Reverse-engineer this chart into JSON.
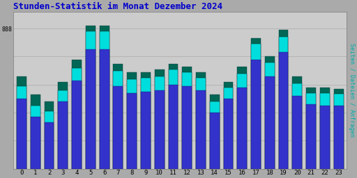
{
  "title": "Stunden-Statistik im Monat Dezember 2024",
  "title_color": "#0000CC",
  "ylabel_right": "Seiten / Dateien / Anfragen",
  "hours": [
    0,
    1,
    2,
    3,
    4,
    5,
    6,
    7,
    8,
    9,
    10,
    11,
    12,
    13,
    14,
    15,
    16,
    17,
    18,
    19,
    20,
    21,
    22,
    23
  ],
  "seiten": [
    330,
    265,
    240,
    310,
    390,
    510,
    510,
    375,
    345,
    345,
    355,
    375,
    365,
    345,
    265,
    310,
    365,
    465,
    400,
    495,
    330,
    290,
    290,
    285
  ],
  "dateien": [
    295,
    225,
    205,
    280,
    360,
    490,
    490,
    350,
    320,
    325,
    330,
    355,
    345,
    325,
    240,
    290,
    340,
    445,
    380,
    470,
    305,
    270,
    270,
    268
  ],
  "anfragen": [
    250,
    185,
    165,
    240,
    315,
    425,
    425,
    295,
    270,
    275,
    280,
    300,
    295,
    280,
    200,
    250,
    290,
    390,
    330,
    415,
    260,
    230,
    225,
    225
  ],
  "color_seiten": "#006655",
  "color_dateien": "#00DDDD",
  "color_anfragen": "#3333CC",
  "bg_color": "#AAAAAA",
  "plot_bg_color": "#CCCCCC",
  "bar_width": 0.7,
  "ylim": [
    0,
    560
  ],
  "font_family": "monospace"
}
